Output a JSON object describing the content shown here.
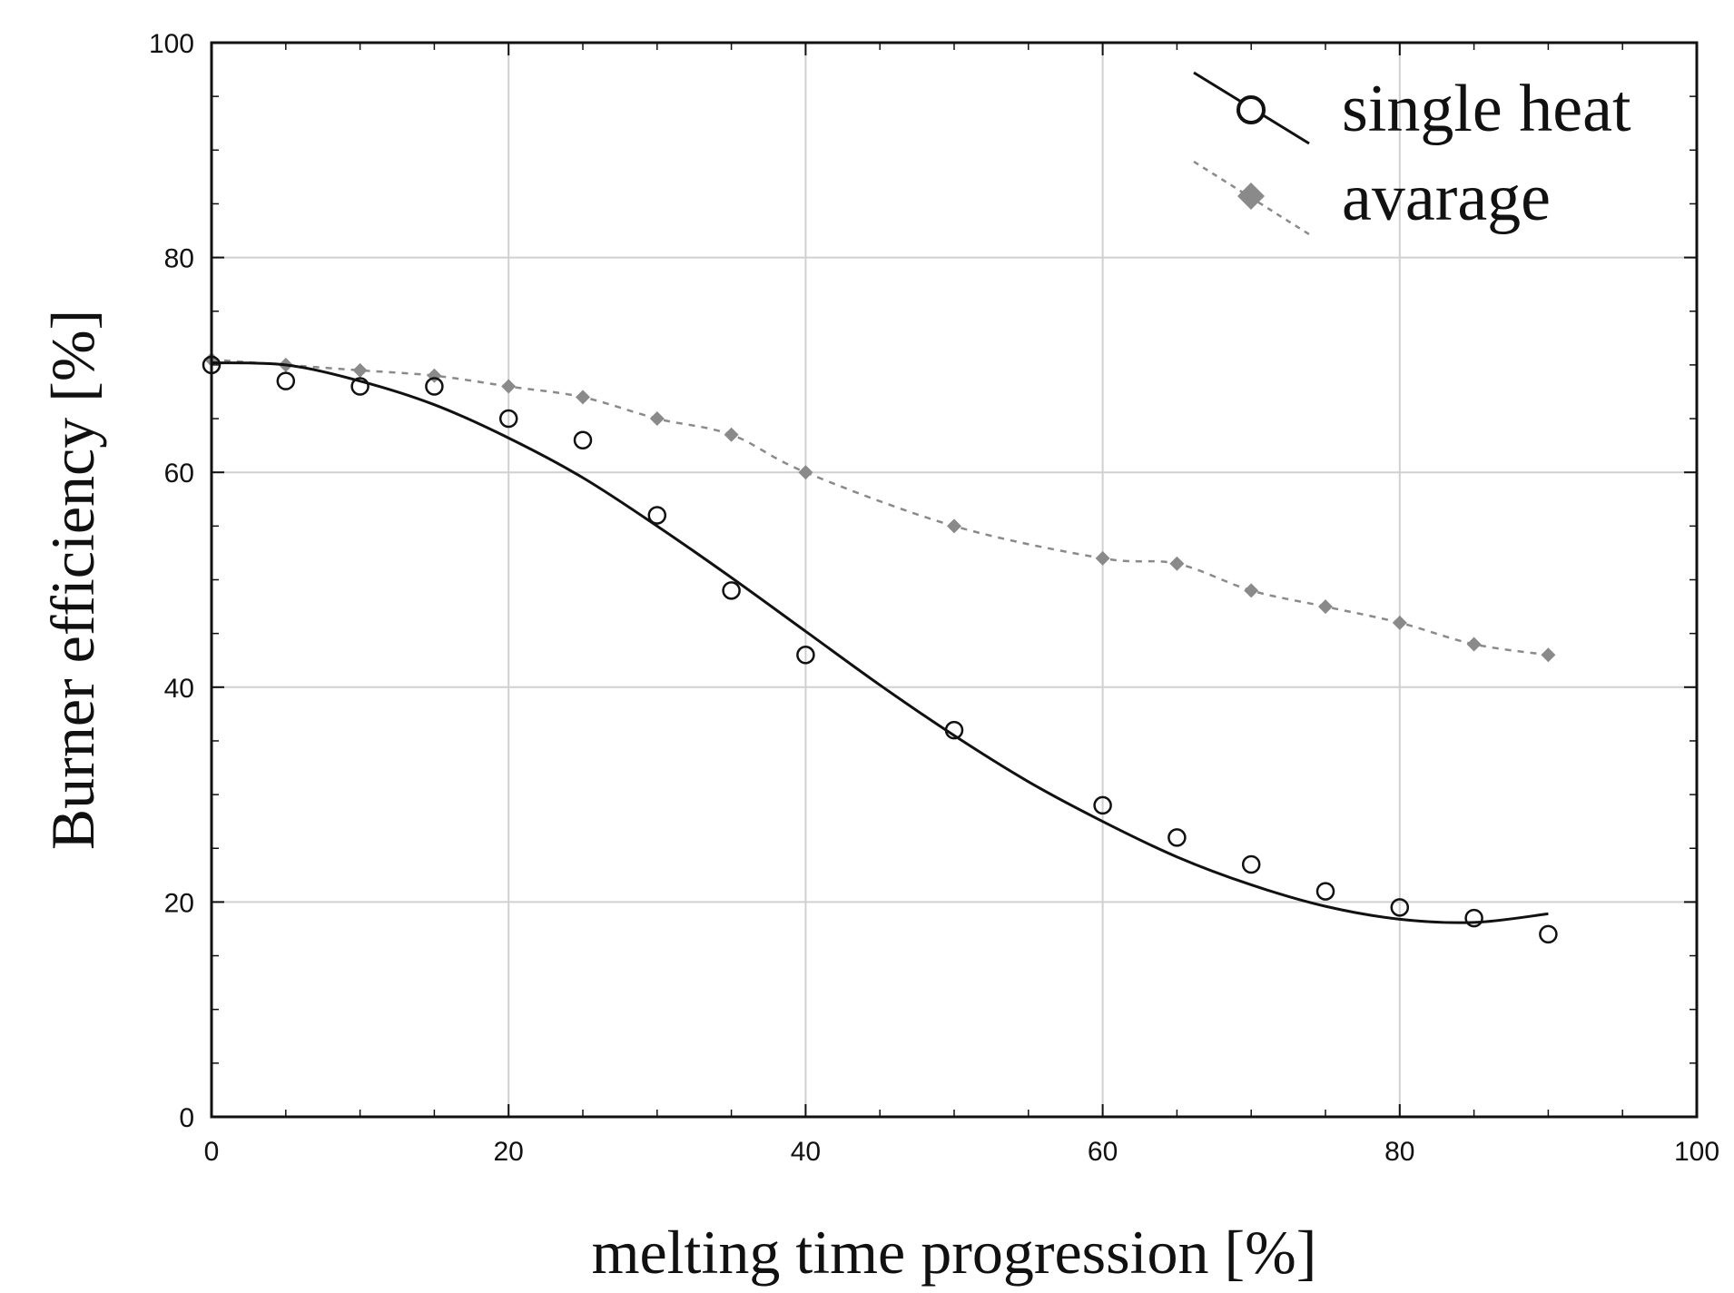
{
  "chart_data": {
    "type": "scatter",
    "xlabel": "melting time progression [%]",
    "ylabel": "Burner efficiency [%]",
    "xlim": [
      0,
      100
    ],
    "ylim": [
      0,
      100
    ],
    "xticks": [
      0,
      20,
      40,
      60,
      80,
      100
    ],
    "yticks": [
      0,
      20,
      40,
      60,
      80,
      100
    ],
    "xtick_labels": [
      "0",
      "20",
      "40",
      "60",
      "80",
      "100"
    ],
    "ytick_labels": [
      "0",
      "20",
      "40",
      "60",
      "80",
      "100"
    ],
    "grid": true,
    "legend_position": "top-right",
    "series": [
      {
        "name": "single heat",
        "marker": "open-circle",
        "color": "#111111",
        "x": [
          0,
          5,
          10,
          15,
          20,
          25,
          30,
          35,
          40,
          50,
          60,
          65,
          70,
          75,
          80,
          85,
          90
        ],
        "y": [
          70,
          68.5,
          68,
          68,
          65,
          63,
          56,
          49,
          43,
          36,
          29,
          26,
          23.5,
          21,
          19.5,
          18.5,
          17
        ],
        "fit_line": {
          "style": "solid",
          "x": [
            0,
            5,
            10,
            15,
            20,
            25,
            30,
            35,
            40,
            45,
            50,
            55,
            60,
            65,
            70,
            75,
            80,
            85,
            90
          ],
          "y": [
            70.2,
            70,
            68.5,
            66.3,
            63.2,
            59.5,
            55,
            50.2,
            45.2,
            40.2,
            35.5,
            31.2,
            27.5,
            24.2,
            21.6,
            19.6,
            18.4,
            18.1,
            18.9
          ]
        }
      },
      {
        "name": "avarage",
        "marker": "filled-diamond",
        "color": "#8a8a8a",
        "line_style": "dashed",
        "x": [
          0,
          5,
          10,
          15,
          20,
          25,
          30,
          35,
          40,
          50,
          60,
          65,
          70,
          75,
          80,
          85,
          90
        ],
        "y": [
          70.5,
          70,
          69.5,
          69,
          68,
          67,
          65,
          63.5,
          60,
          55,
          52,
          51.5,
          49,
          47.5,
          46,
          44,
          43
        ]
      }
    ]
  }
}
